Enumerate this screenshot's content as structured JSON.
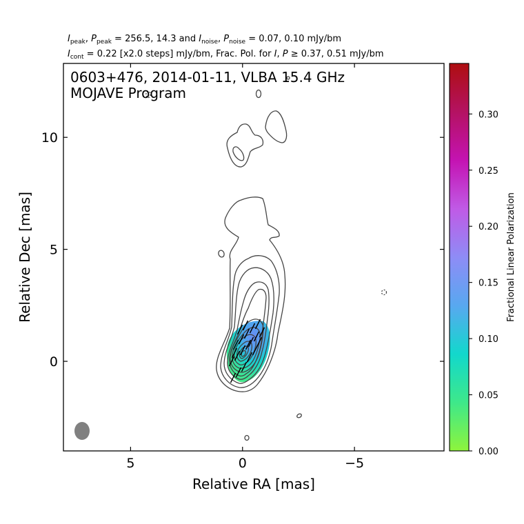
{
  "header": {
    "line1": {
      "i_label": "I",
      "i_sub": "peak",
      "sep1": ", ",
      "p_label": "P",
      "p_sub": "peak",
      "mid": " = 256.5, 14.3 and ",
      "in_label": "I",
      "in_sub": "noise",
      "sep2": ", ",
      "pn_label": "P",
      "pn_sub": "noise",
      "tail": " = 0.07, 0.10 mJy/bm"
    },
    "line2": {
      "ic_label": "I",
      "ic_sub": "cont",
      "mid": " = 0.22 [x2.0 steps] mJy/bm, Frac. Pol. for ",
      "i_label": "I",
      "sep": ", ",
      "p_label": "P",
      "tail": " ≥ 0.37, 0.51 mJy/bm"
    }
  },
  "plot": {
    "title_line1": "0603+476, 2014-01-11, VLBA 15.4 GHz",
    "title_line2": "MOJAVE Program",
    "xlabel": "Relative RA [mas]",
    "ylabel": "Relative Dec [mas]"
  },
  "colorbar": {
    "label": "Fractional Linear Polarization"
  },
  "chart_data": {
    "type": "contour",
    "source": "0603+476",
    "date": "2014-01-11",
    "instrument": "VLBA 15.4 GHz",
    "program": "MOJAVE Program",
    "x_axis": {
      "label": "Relative RA [mas]",
      "range": [
        8,
        -9
      ],
      "inverted": true,
      "ticks": [
        5,
        0,
        -5
      ],
      "tick_labels": [
        "5",
        "0",
        "−5"
      ]
    },
    "y_axis": {
      "label": "Relative Dec [mas]",
      "range": [
        -4,
        13.3
      ],
      "ticks": [
        0,
        5,
        10
      ],
      "tick_labels": [
        "0",
        "5",
        "10"
      ]
    },
    "colorbar": {
      "label": "Fractional Linear Polarization",
      "range": [
        0,
        0.345
      ],
      "ticks": [
        0.0,
        0.05,
        0.1,
        0.15,
        0.2,
        0.25,
        0.3
      ],
      "tick_labels": [
        "0.00",
        "0.05",
        "0.10",
        "0.15",
        "0.20",
        "0.25",
        "0.30"
      ],
      "colormap": [
        "#8ef43c",
        "#3ee88a",
        "#12d8cc",
        "#58a8f0",
        "#8e8cf6",
        "#c05ae6",
        "#c413b2",
        "#b41262",
        "#ae0e10"
      ]
    },
    "stokes": {
      "I_peak_mJy_bm": 256.5,
      "P_peak_mJy_bm": 14.3,
      "I_noise_mJy_bm": 0.07,
      "P_noise_mJy_bm": 0.1,
      "I_cont_mJy_bm": 0.22,
      "contour_step_factor": 2.0,
      "fracpol_cutoff_I_mJy_bm": 0.37,
      "fracpol_cutoff_P_mJy_bm": 0.51
    },
    "beam": {
      "ra": 7.1,
      "dec": -3.15,
      "major_mas": 0.8,
      "minor_mas": 0.7
    },
    "core": {
      "ra": 0.0,
      "dec": 0.0
    },
    "contour_color": "#444444",
    "evpa_color": "#000000"
  }
}
